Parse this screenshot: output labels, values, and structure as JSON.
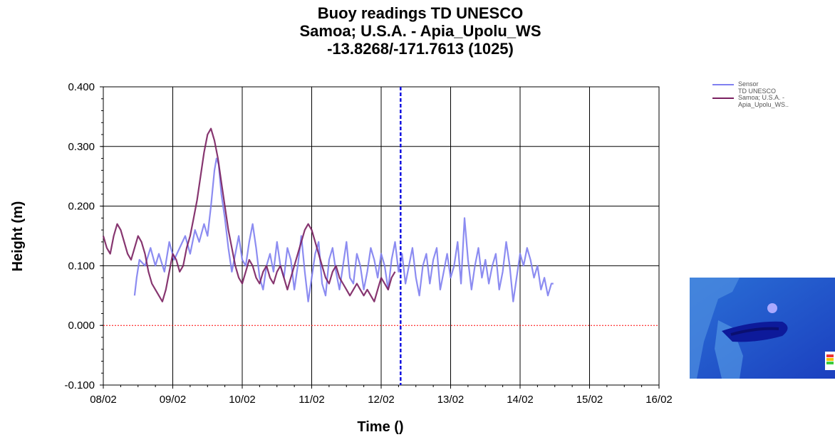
{
  "title_lines": [
    "Buoy readings TD UNESCO",
    "Samoa; U.S.A. - Apia_Upolu_WS",
    "-13.8268/-171.7613 (1025)"
  ],
  "legend": [
    {
      "label": "Sensor TD UNESCO",
      "lines": [
        "Sensor",
        "TD UNESCO"
      ],
      "color": "#8080f0"
    },
    {
      "label": "Samoa; U.S.A. - Apia_Upolu_WS..",
      "lines": [
        "Samoa; U.S.A. -",
        "Apia_Upolu_WS.."
      ],
      "color": "#7a2060"
    }
  ],
  "chart_data": {
    "type": "line",
    "title": "Buoy readings TD UNESCO / Samoa; U.S.A. - Apia_Upolu_WS / -13.8268/-171.7613 (1025)",
    "xlabel": "Time ()",
    "ylabel": "Height (m)",
    "x_ticks": [
      "08/02",
      "09/02",
      "10/02",
      "11/02",
      "12/02",
      "13/02",
      "14/02",
      "15/02",
      "16/02"
    ],
    "y_ticks": [
      "0.400",
      "0.300",
      "0.200",
      "0.100",
      "0.000",
      "-0.100"
    ],
    "ylim": [
      -0.1,
      0.4
    ],
    "xlim_days": [
      8,
      16
    ],
    "grid": true,
    "legend_position": "top-right",
    "marker_time_day": 12.28,
    "zero_line_color": "#ff0000",
    "marker_color": "#1010e0",
    "series": [
      {
        "name": "Sensor TD UNESCO",
        "color": "#8080f0",
        "x": [
          8.45,
          8.48,
          8.52,
          8.6,
          8.68,
          8.75,
          8.8,
          8.88,
          8.95,
          9.02,
          9.1,
          9.18,
          9.25,
          9.32,
          9.38,
          9.45,
          9.5,
          9.55,
          9.6,
          9.63,
          9.66,
          9.7,
          9.75,
          9.8,
          9.85,
          9.9,
          9.95,
          10.0,
          10.05,
          10.1,
          10.15,
          10.2,
          10.25,
          10.3,
          10.35,
          10.4,
          10.45,
          10.5,
          10.55,
          10.6,
          10.65,
          10.7,
          10.75,
          10.8,
          10.85,
          10.9,
          10.95,
          11.0,
          11.05,
          11.1,
          11.15,
          11.2,
          11.25,
          11.3,
          11.35,
          11.4,
          11.45,
          11.5,
          11.55,
          11.6,
          11.65,
          11.7,
          11.75,
          11.8,
          11.85,
          11.9,
          11.95,
          12.0,
          12.05,
          12.1,
          12.15,
          12.2,
          12.25,
          12.3,
          12.35,
          12.4,
          12.45,
          12.5,
          12.55,
          12.6,
          12.65,
          12.7,
          12.75,
          12.8,
          12.85,
          12.9,
          12.95,
          13.0,
          13.05,
          13.1,
          13.15,
          13.2,
          13.25,
          13.3,
          13.35,
          13.4,
          13.45,
          13.5,
          13.55,
          13.6,
          13.65,
          13.7,
          13.75,
          13.8,
          13.85,
          13.9,
          13.95,
          14.0,
          14.05,
          14.1,
          14.15,
          14.2,
          14.25,
          14.3,
          14.35,
          14.4,
          14.45,
          14.48
        ],
        "y": [
          0.05,
          0.08,
          0.11,
          0.1,
          0.13,
          0.1,
          0.12,
          0.09,
          0.14,
          0.11,
          0.13,
          0.15,
          0.12,
          0.16,
          0.14,
          0.17,
          0.15,
          0.2,
          0.26,
          0.28,
          0.27,
          0.22,
          0.18,
          0.13,
          0.09,
          0.12,
          0.15,
          0.11,
          0.1,
          0.14,
          0.17,
          0.13,
          0.08,
          0.06,
          0.1,
          0.12,
          0.09,
          0.14,
          0.1,
          0.08,
          0.13,
          0.11,
          0.06,
          0.1,
          0.15,
          0.09,
          0.04,
          0.08,
          0.12,
          0.14,
          0.07,
          0.05,
          0.11,
          0.13,
          0.09,
          0.06,
          0.1,
          0.14,
          0.08,
          0.07,
          0.12,
          0.1,
          0.06,
          0.09,
          0.13,
          0.11,
          0.08,
          0.12,
          0.1,
          0.06,
          0.11,
          0.14,
          0.09,
          0.12,
          0.07,
          0.1,
          0.13,
          0.08,
          0.05,
          0.1,
          0.12,
          0.07,
          0.11,
          0.13,
          0.06,
          0.09,
          0.12,
          0.08,
          0.1,
          0.14,
          0.07,
          0.18,
          0.11,
          0.06,
          0.1,
          0.13,
          0.08,
          0.11,
          0.07,
          0.1,
          0.12,
          0.06,
          0.09,
          0.14,
          0.1,
          0.04,
          0.08,
          0.12,
          0.1,
          0.13,
          0.11,
          0.08,
          0.1,
          0.06,
          0.08,
          0.05,
          0.07,
          0.07
        ]
      },
      {
        "name": "Samoa; U.S.A. - Apia_Upolu_WS..",
        "color": "#7a2060",
        "x": [
          8.0,
          8.05,
          8.1,
          8.15,
          8.2,
          8.25,
          8.3,
          8.35,
          8.4,
          8.45,
          8.5,
          8.55,
          8.6,
          8.65,
          8.7,
          8.75,
          8.8,
          8.85,
          8.9,
          8.95,
          9.0,
          9.05,
          9.1,
          9.15,
          9.2,
          9.25,
          9.3,
          9.35,
          9.4,
          9.45,
          9.5,
          9.55,
          9.6,
          9.65,
          9.7,
          9.75,
          9.8,
          9.85,
          9.9,
          9.95,
          10.0,
          10.05,
          10.1,
          10.15,
          10.2,
          10.25,
          10.3,
          10.35,
          10.4,
          10.45,
          10.5,
          10.55,
          10.6,
          10.65,
          10.7,
          10.75,
          10.8,
          10.85,
          10.9,
          10.95,
          11.0,
          11.05,
          11.1,
          11.15,
          11.2,
          11.25,
          11.3,
          11.35,
          11.4,
          11.45,
          11.5,
          11.55,
          11.6,
          11.65,
          11.7,
          11.75,
          11.8,
          11.85,
          11.9,
          11.95,
          12.0,
          12.05,
          12.1,
          12.15,
          12.2
        ],
        "y": [
          0.15,
          0.13,
          0.12,
          0.15,
          0.17,
          0.16,
          0.14,
          0.12,
          0.11,
          0.13,
          0.15,
          0.14,
          0.12,
          0.09,
          0.07,
          0.06,
          0.05,
          0.04,
          0.06,
          0.09,
          0.12,
          0.11,
          0.09,
          0.1,
          0.13,
          0.15,
          0.18,
          0.21,
          0.25,
          0.29,
          0.32,
          0.33,
          0.31,
          0.28,
          0.24,
          0.2,
          0.16,
          0.13,
          0.1,
          0.08,
          0.07,
          0.09,
          0.11,
          0.1,
          0.08,
          0.07,
          0.09,
          0.1,
          0.08,
          0.07,
          0.09,
          0.1,
          0.08,
          0.06,
          0.08,
          0.1,
          0.12,
          0.14,
          0.16,
          0.17,
          0.16,
          0.14,
          0.12,
          0.1,
          0.08,
          0.07,
          0.09,
          0.1,
          0.08,
          0.07,
          0.06,
          0.05,
          0.06,
          0.07,
          0.06,
          0.05,
          0.06,
          0.05,
          0.04,
          0.06,
          0.08,
          0.07,
          0.06,
          0.08,
          0.09
        ]
      }
    ]
  }
}
